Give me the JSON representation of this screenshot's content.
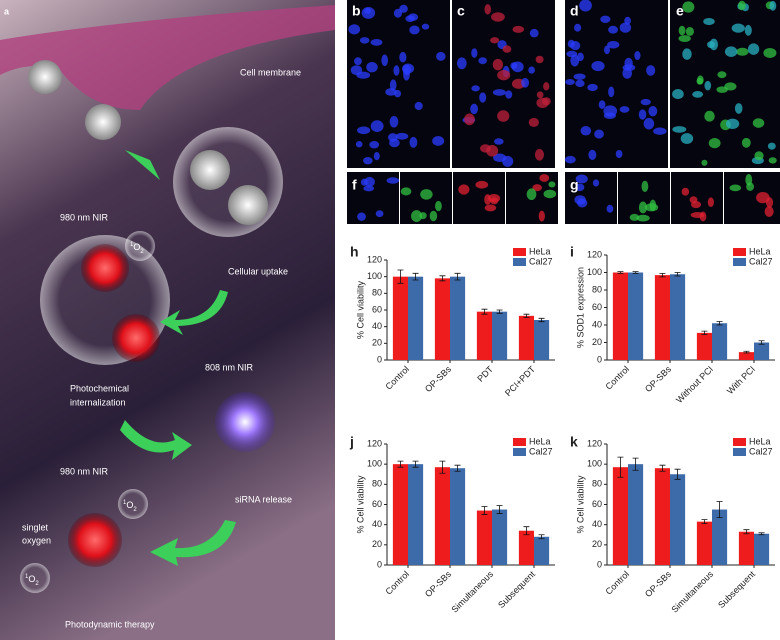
{
  "figure": {
    "panel_a": {
      "label": "a",
      "cell_membrane": "Cell membrane",
      "nir_980_top": "980 nm NIR",
      "cellular_uptake": "Cellular uptake",
      "nir_808": "808 nm NIR",
      "photochemical": [
        "Photochemical",
        "internalization"
      ],
      "nir_980_bottom": "980 nm NIR",
      "sirna_release": "siRNA release",
      "singlet_oxygen": [
        "singlet",
        "oxygen"
      ],
      "photodynamic_therapy": "Photodynamic therapy",
      "o2_labels": [
        {
          "sup": "1",
          "base": "O",
          "sub": "2"
        },
        {
          "sup": "1",
          "base": "O",
          "sub": "2"
        },
        {
          "sup": "1",
          "base": "O",
          "sub": "2"
        }
      ]
    },
    "micrograph_labels": [
      "b",
      "c",
      "d",
      "e",
      "f",
      "g"
    ]
  },
  "chart_data": [
    {
      "type": "bar",
      "label": "h",
      "ylabel": "% Cell viability",
      "categories": [
        "Control",
        "OP-SBs",
        "PDT",
        "PCI+PDT"
      ],
      "series": [
        {
          "name": "HeLa",
          "color": "#ee1c1c",
          "values": [
            100,
            98,
            58,
            53
          ],
          "errors": [
            8,
            3,
            3,
            2
          ]
        },
        {
          "name": "Cal27",
          "color": "#3d6aa8",
          "values": [
            100,
            100,
            58,
            48
          ],
          "errors": [
            4,
            4,
            2,
            2
          ]
        }
      ],
      "ylim": [
        0,
        120
      ],
      "yticks": [
        0,
        20,
        40,
        60,
        80,
        100,
        120
      ],
      "legend": "upper right"
    },
    {
      "type": "bar",
      "label": "i",
      "ylabel": "% SOD1 expression",
      "categories": [
        "Control",
        "OP-SBs",
        "Without PCI",
        "With PCI"
      ],
      "series": [
        {
          "name": "HeLa",
          "color": "#ee1c1c",
          "values": [
            100,
            97,
            31,
            9
          ],
          "errors": [
            1,
            2,
            2,
            1
          ]
        },
        {
          "name": "Cal27",
          "color": "#3d6aa8",
          "values": [
            100,
            98,
            42,
            20
          ],
          "errors": [
            1,
            2,
            2,
            2
          ]
        }
      ],
      "ylim": [
        0,
        120
      ],
      "yticks": [
        0,
        20,
        40,
        60,
        80,
        100,
        120
      ],
      "legend": "upper right"
    },
    {
      "type": "bar",
      "label": "j",
      "ylabel": "% Cell viability",
      "categories": [
        "Control",
        "OP-SBs",
        "Simultaneous",
        "Subsequent"
      ],
      "series": [
        {
          "name": "HeLa",
          "color": "#ee1c1c",
          "values": [
            100,
            97,
            54,
            34
          ],
          "errors": [
            3,
            6,
            4,
            4
          ]
        },
        {
          "name": "Cal27",
          "color": "#3d6aa8",
          "values": [
            100,
            96,
            55,
            28
          ],
          "errors": [
            3,
            3,
            4,
            2
          ]
        }
      ],
      "ylim": [
        0,
        120
      ],
      "yticks": [
        0,
        20,
        40,
        60,
        80,
        100,
        120
      ],
      "legend": "upper right"
    },
    {
      "type": "bar",
      "label": "k",
      "ylabel": "% Cell viability",
      "categories": [
        "Control",
        "OP-SBs",
        "Simultaneous",
        "Subsequent"
      ],
      "series": [
        {
          "name": "HeLa",
          "color": "#ee1c1c",
          "values": [
            97,
            96,
            43,
            33
          ],
          "errors": [
            10,
            3,
            2,
            2
          ]
        },
        {
          "name": "Cal27",
          "color": "#3d6aa8",
          "values": [
            100,
            90,
            55,
            31
          ],
          "errors": [
            6,
            5,
            8,
            1
          ]
        }
      ],
      "ylim": [
        0,
        120
      ],
      "yticks": [
        0,
        20,
        40,
        60,
        80,
        100,
        120
      ],
      "legend": "upper right"
    }
  ]
}
